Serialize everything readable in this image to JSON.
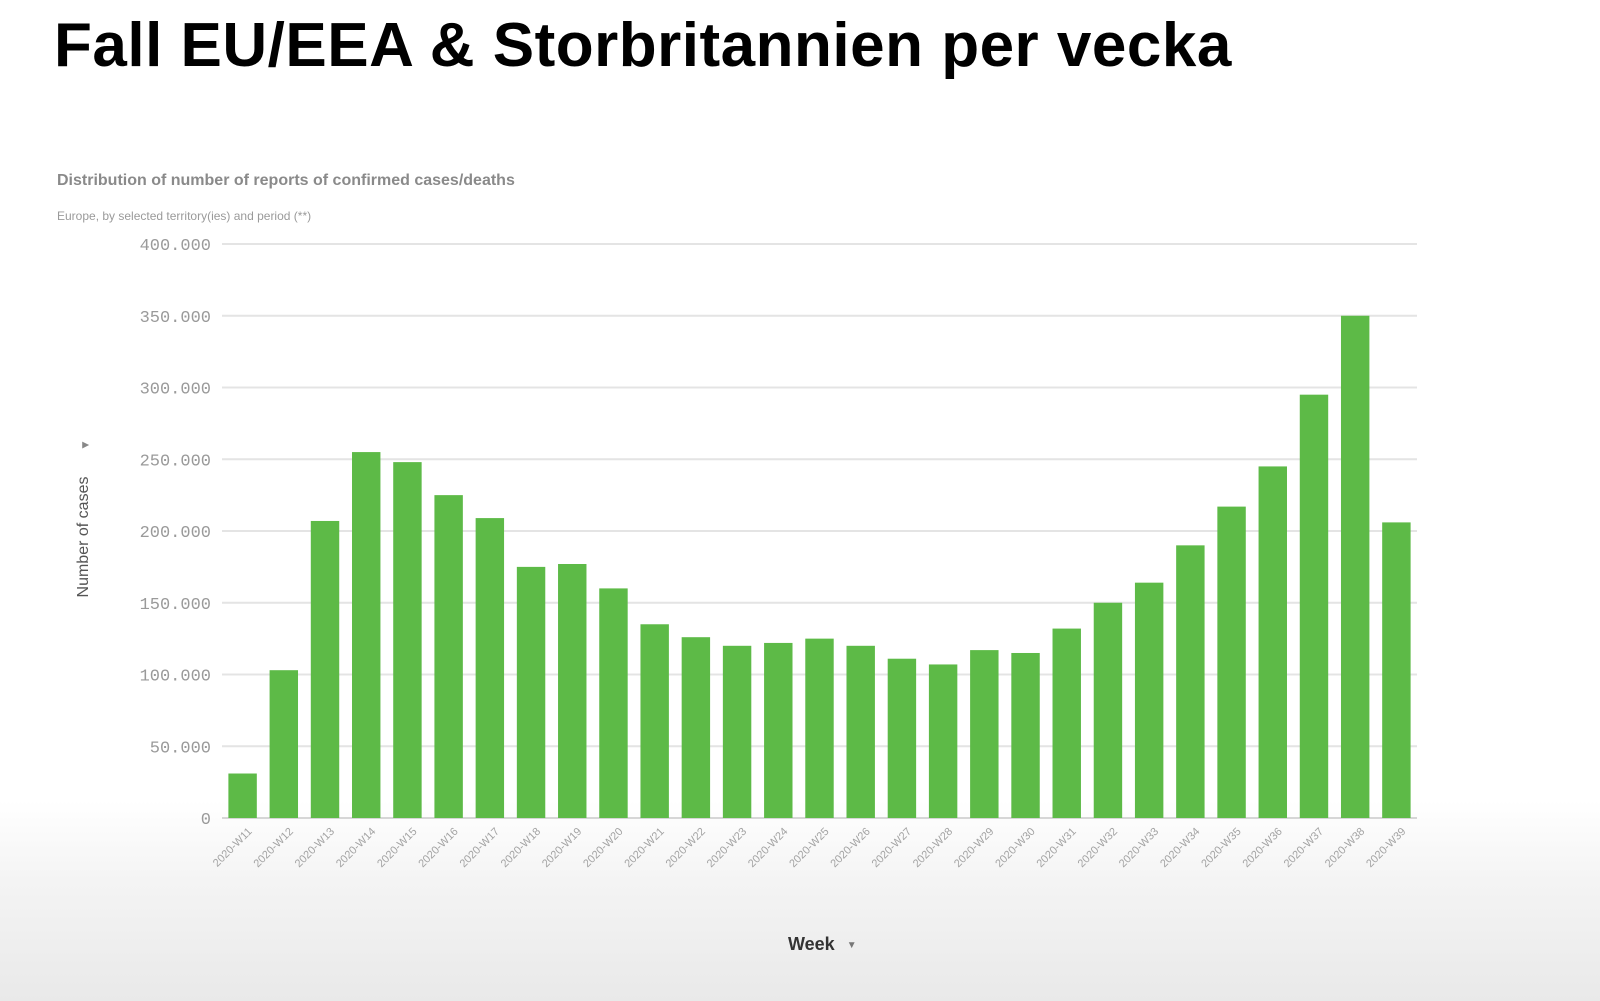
{
  "slide": {
    "title": "Fall EU/EEA & Storbritannien per vecka"
  },
  "chart_data": {
    "type": "bar",
    "title": "Distribution of number of reports of confirmed cases/deaths",
    "subtitle": "Europe, by selected territory(ies) and period (**)",
    "xlabel": "Week",
    "ylabel": "Number of cases",
    "ylim": [
      0,
      400000
    ],
    "yticks": [
      0,
      50000,
      100000,
      150000,
      200000,
      250000,
      300000,
      350000,
      400000
    ],
    "ytick_labels": [
      "0",
      "50.000",
      "100.000",
      "150.000",
      "200.000",
      "250.000",
      "300.000",
      "350.000",
      "400.000"
    ],
    "grid": true,
    "bar_color": "#5dba47",
    "categories": [
      "2020-W11",
      "2020-W12",
      "2020-W13",
      "2020-W14",
      "2020-W15",
      "2020-W16",
      "2020-W17",
      "2020-W18",
      "2020-W19",
      "2020-W20",
      "2020-W21",
      "2020-W22",
      "2020-W23",
      "2020-W24",
      "2020-W25",
      "2020-W26",
      "2020-W27",
      "2020-W28",
      "2020-W29",
      "2020-W30",
      "2020-W31",
      "2020-W32",
      "2020-W33",
      "2020-W34",
      "2020-W35",
      "2020-W36",
      "2020-W37",
      "2020-W38",
      "2020-W39"
    ],
    "values": [
      31000,
      103000,
      207000,
      255000,
      248000,
      225000,
      209000,
      175000,
      177000,
      160000,
      135000,
      126000,
      120000,
      122000,
      125000,
      120000,
      111000,
      107000,
      117000,
      115000,
      132000,
      150000,
      164000,
      190000,
      217000,
      245000,
      295000,
      350000,
      206000
    ]
  }
}
